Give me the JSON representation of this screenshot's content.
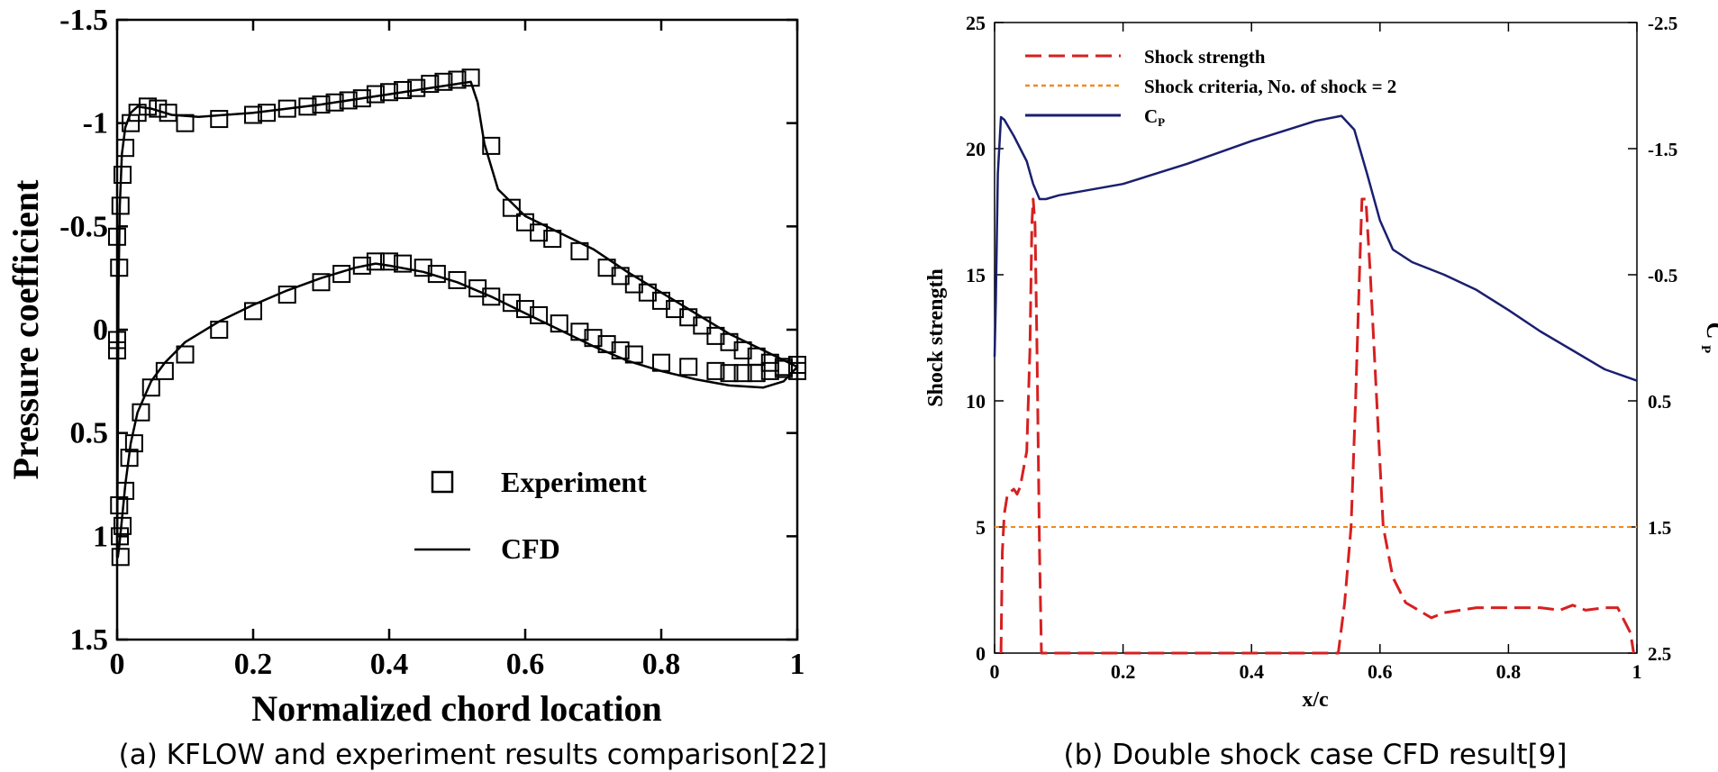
{
  "panels": {
    "a_caption": "(a) KFLOW and experiment results comparison[22]",
    "b_caption": "(b) Double shock case CFD result[9]"
  },
  "chart_data": [
    {
      "type": "scatter",
      "panel": "a",
      "title": "",
      "xlabel": "Normalized chord location",
      "ylabel": "Pressure coefficient",
      "xlim": [
        0,
        1
      ],
      "ylim": [
        1.5,
        -1.5
      ],
      "y_inverted": true,
      "grid": false,
      "legend_position": "bottom-right",
      "x_ticks": [
        "0",
        "0.2",
        "0.4",
        "0.6",
        "0.8",
        "1"
      ],
      "y_ticks": [
        "-1.5",
        "-1",
        "-0.5",
        "0",
        "0.5",
        "1",
        "1.5"
      ],
      "legend": [
        {
          "label": "Experiment",
          "marker": "square"
        },
        {
          "label": "CFD",
          "marker": "line"
        }
      ],
      "series": [
        {
          "name": "Experiment",
          "marker": "square",
          "points": [
            [
              0.0,
              -0.45
            ],
            [
              0.003,
              -0.3
            ],
            [
              0.005,
              -0.6
            ],
            [
              0.008,
              -0.75
            ],
            [
              0.012,
              -0.88
            ],
            [
              0.02,
              -1.0
            ],
            [
              0.03,
              -1.05
            ],
            [
              0.045,
              -1.08
            ],
            [
              0.06,
              -1.07
            ],
            [
              0.075,
              -1.05
            ],
            [
              0.1,
              -1.0
            ],
            [
              0.15,
              -1.02
            ],
            [
              0.2,
              -1.04
            ],
            [
              0.22,
              -1.05
            ],
            [
              0.25,
              -1.07
            ],
            [
              0.28,
              -1.08
            ],
            [
              0.3,
              -1.09
            ],
            [
              0.32,
              -1.1
            ],
            [
              0.34,
              -1.11
            ],
            [
              0.36,
              -1.12
            ],
            [
              0.38,
              -1.14
            ],
            [
              0.4,
              -1.15
            ],
            [
              0.42,
              -1.16
            ],
            [
              0.44,
              -1.17
            ],
            [
              0.46,
              -1.19
            ],
            [
              0.48,
              -1.2
            ],
            [
              0.5,
              -1.21
            ],
            [
              0.52,
              -1.22
            ],
            [
              0.55,
              -0.89
            ],
            [
              0.58,
              -0.59
            ],
            [
              0.6,
              -0.52
            ],
            [
              0.62,
              -0.47
            ],
            [
              0.64,
              -0.44
            ],
            [
              0.68,
              -0.38
            ],
            [
              0.72,
              -0.3
            ],
            [
              0.74,
              -0.26
            ],
            [
              0.76,
              -0.22
            ],
            [
              0.78,
              -0.18
            ],
            [
              0.8,
              -0.14
            ],
            [
              0.82,
              -0.1
            ],
            [
              0.84,
              -0.06
            ],
            [
              0.86,
              -0.02
            ],
            [
              0.88,
              0.03
            ],
            [
              0.9,
              0.06
            ],
            [
              0.92,
              0.1
            ],
            [
              0.94,
              0.13
            ],
            [
              0.96,
              0.16
            ],
            [
              0.98,
              0.18
            ],
            [
              1.0,
              0.17
            ],
            [
              0.0,
              0.05
            ],
            [
              0.0,
              0.1
            ],
            [
              0.003,
              0.85
            ],
            [
              0.004,
              1.0
            ],
            [
              0.005,
              1.1
            ],
            [
              0.008,
              0.95
            ],
            [
              0.012,
              0.78
            ],
            [
              0.018,
              0.62
            ],
            [
              0.025,
              0.55
            ],
            [
              0.035,
              0.4
            ],
            [
              0.05,
              0.28
            ],
            [
              0.07,
              0.2
            ],
            [
              0.1,
              0.12
            ],
            [
              0.15,
              0.0
            ],
            [
              0.2,
              -0.09
            ],
            [
              0.25,
              -0.17
            ],
            [
              0.3,
              -0.23
            ],
            [
              0.33,
              -0.27
            ],
            [
              0.36,
              -0.31
            ],
            [
              0.38,
              -0.33
            ],
            [
              0.4,
              -0.33
            ],
            [
              0.42,
              -0.32
            ],
            [
              0.45,
              -0.3
            ],
            [
              0.47,
              -0.27
            ],
            [
              0.5,
              -0.24
            ],
            [
              0.53,
              -0.2
            ],
            [
              0.55,
              -0.16
            ],
            [
              0.58,
              -0.13
            ],
            [
              0.6,
              -0.1
            ],
            [
              0.62,
              -0.07
            ],
            [
              0.65,
              -0.03
            ],
            [
              0.68,
              0.01
            ],
            [
              0.7,
              0.04
            ],
            [
              0.72,
              0.07
            ],
            [
              0.74,
              0.1
            ],
            [
              0.76,
              0.12
            ],
            [
              0.8,
              0.16
            ],
            [
              0.84,
              0.18
            ],
            [
              0.88,
              0.2
            ],
            [
              0.9,
              0.21
            ],
            [
              0.92,
              0.21
            ],
            [
              0.94,
              0.21
            ],
            [
              0.96,
              0.2
            ],
            [
              0.98,
              0.19
            ],
            [
              1.0,
              0.2
            ]
          ]
        },
        {
          "name": "CFD",
          "marker": "line",
          "points": [
            [
              0.0,
              1.1
            ],
            [
              0.001,
              0.5
            ],
            [
              0.002,
              -0.2
            ],
            [
              0.004,
              -0.6
            ],
            [
              0.007,
              -0.85
            ],
            [
              0.012,
              -0.98
            ],
            [
              0.02,
              -1.05
            ],
            [
              0.03,
              -1.08
            ],
            [
              0.05,
              -1.07
            ],
            [
              0.08,
              -1.04
            ],
            [
              0.12,
              -1.03
            ],
            [
              0.2,
              -1.05
            ],
            [
              0.3,
              -1.09
            ],
            [
              0.4,
              -1.14
            ],
            [
              0.5,
              -1.19
            ],
            [
              0.52,
              -1.2
            ],
            [
              0.53,
              -1.1
            ],
            [
              0.54,
              -0.9
            ],
            [
              0.56,
              -0.68
            ],
            [
              0.6,
              -0.55
            ],
            [
              0.65,
              -0.47
            ],
            [
              0.7,
              -0.39
            ],
            [
              0.75,
              -0.28
            ],
            [
              0.8,
              -0.18
            ],
            [
              0.85,
              -0.08
            ],
            [
              0.9,
              0.02
            ],
            [
              0.95,
              0.1
            ],
            [
              1.0,
              0.18
            ],
            [
              1.0,
              0.18
            ],
            [
              0.98,
              0.25
            ],
            [
              0.95,
              0.28
            ],
            [
              0.9,
              0.27
            ],
            [
              0.85,
              0.24
            ],
            [
              0.8,
              0.2
            ],
            [
              0.75,
              0.15
            ],
            [
              0.7,
              0.08
            ],
            [
              0.65,
              0.0
            ],
            [
              0.6,
              -0.08
            ],
            [
              0.55,
              -0.16
            ],
            [
              0.5,
              -0.23
            ],
            [
              0.45,
              -0.28
            ],
            [
              0.4,
              -0.31
            ],
            [
              0.38,
              -0.32
            ],
            [
              0.35,
              -0.3
            ],
            [
              0.3,
              -0.25
            ],
            [
              0.25,
              -0.19
            ],
            [
              0.2,
              -0.12
            ],
            [
              0.15,
              -0.04
            ],
            [
              0.1,
              0.06
            ],
            [
              0.07,
              0.16
            ],
            [
              0.05,
              0.25
            ],
            [
              0.03,
              0.4
            ],
            [
              0.02,
              0.55
            ],
            [
              0.012,
              0.75
            ],
            [
              0.007,
              0.92
            ],
            [
              0.003,
              1.05
            ],
            [
              0.001,
              1.1
            ],
            [
              0.0,
              1.1
            ]
          ]
        }
      ]
    },
    {
      "type": "line",
      "panel": "b",
      "title": "",
      "xlabel": "x/c",
      "ylabel": "Shock strength",
      "y2label": "C",
      "y2label_sub": "P",
      "xlim": [
        0,
        1
      ],
      "ylim": [
        0,
        25
      ],
      "y2lim": [
        2.5,
        -2.5
      ],
      "grid": false,
      "legend_position": "top-left",
      "x_ticks": [
        "0",
        "0.2",
        "0.4",
        "0.6",
        "0.8",
        "1"
      ],
      "y_ticks": [
        "0",
        "5",
        "10",
        "15",
        "20",
        "25"
      ],
      "y2_ticks": [
        "2.5",
        "1.5",
        "0.5",
        "-0.5",
        "-1.5",
        "-2.5"
      ],
      "y2_tick_values": [
        2.5,
        1.5,
        0.5,
        -0.5,
        -1.5,
        -2.5
      ],
      "legend": [
        {
          "label": "Shock strength",
          "color": "#d62020",
          "style": "dashed"
        },
        {
          "label": "Shock criteria, No. of shock = 2",
          "color": "#f08a1c",
          "style": "dotted"
        },
        {
          "label": "C",
          "label_sub": "P",
          "color": "#1a1f6e",
          "style": "solid"
        }
      ],
      "series": [
        {
          "name": "Shock strength",
          "axis": "left",
          "color": "#d62020",
          "points": [
            [
              0.01,
              0
            ],
            [
              0.012,
              4
            ],
            [
              0.015,
              5.5
            ],
            [
              0.02,
              6.3
            ],
            [
              0.03,
              6.5
            ],
            [
              0.035,
              6.3
            ],
            [
              0.04,
              6.6
            ],
            [
              0.05,
              8
            ],
            [
              0.055,
              12
            ],
            [
              0.058,
              17
            ],
            [
              0.06,
              18
            ],
            [
              0.063,
              17
            ],
            [
              0.066,
              12
            ],
            [
              0.07,
              4
            ],
            [
              0.073,
              0
            ],
            [
              0.1,
              0
            ],
            [
              0.2,
              0
            ],
            [
              0.3,
              0
            ],
            [
              0.4,
              0
            ],
            [
              0.5,
              0
            ],
            [
              0.535,
              0
            ],
            [
              0.545,
              2
            ],
            [
              0.555,
              5
            ],
            [
              0.562,
              10
            ],
            [
              0.568,
              15
            ],
            [
              0.572,
              18
            ],
            [
              0.578,
              18
            ],
            [
              0.585,
              15
            ],
            [
              0.595,
              10
            ],
            [
              0.605,
              5
            ],
            [
              0.62,
              3
            ],
            [
              0.64,
              2
            ],
            [
              0.66,
              1.7
            ],
            [
              0.68,
              1.4
            ],
            [
              0.7,
              1.6
            ],
            [
              0.75,
              1.8
            ],
            [
              0.8,
              1.8
            ],
            [
              0.85,
              1.8
            ],
            [
              0.88,
              1.7
            ],
            [
              0.9,
              1.9
            ],
            [
              0.92,
              1.7
            ],
            [
              0.95,
              1.8
            ],
            [
              0.97,
              1.8
            ],
            [
              0.98,
              1.3
            ],
            [
              0.99,
              0.8
            ],
            [
              0.995,
              0
            ]
          ]
        },
        {
          "name": "Shock criteria, No. of shock = 2",
          "axis": "left",
          "color": "#f08a1c",
          "points": [
            [
              0,
              5
            ],
            [
              1,
              5
            ]
          ]
        },
        {
          "name": "C_P",
          "axis": "right",
          "color": "#1a1f6e",
          "points": [
            [
              0.0,
              0.15
            ],
            [
              0.002,
              -0.3
            ],
            [
              0.005,
              -1.3
            ],
            [
              0.01,
              -1.75
            ],
            [
              0.015,
              -1.73
            ],
            [
              0.03,
              -1.6
            ],
            [
              0.05,
              -1.4
            ],
            [
              0.06,
              -1.22
            ],
            [
              0.07,
              -1.1
            ],
            [
              0.08,
              -1.1
            ],
            [
              0.1,
              -1.13
            ],
            [
              0.2,
              -1.22
            ],
            [
              0.3,
              -1.38
            ],
            [
              0.4,
              -1.56
            ],
            [
              0.5,
              -1.72
            ],
            [
              0.54,
              -1.76
            ],
            [
              0.56,
              -1.65
            ],
            [
              0.58,
              -1.3
            ],
            [
              0.6,
              -0.93
            ],
            [
              0.62,
              -0.7
            ],
            [
              0.65,
              -0.6
            ],
            [
              0.7,
              -0.5
            ],
            [
              0.75,
              -0.38
            ],
            [
              0.8,
              -0.22
            ],
            [
              0.85,
              -0.05
            ],
            [
              0.9,
              0.1
            ],
            [
              0.95,
              0.25
            ],
            [
              1.0,
              0.34
            ]
          ]
        }
      ]
    }
  ]
}
